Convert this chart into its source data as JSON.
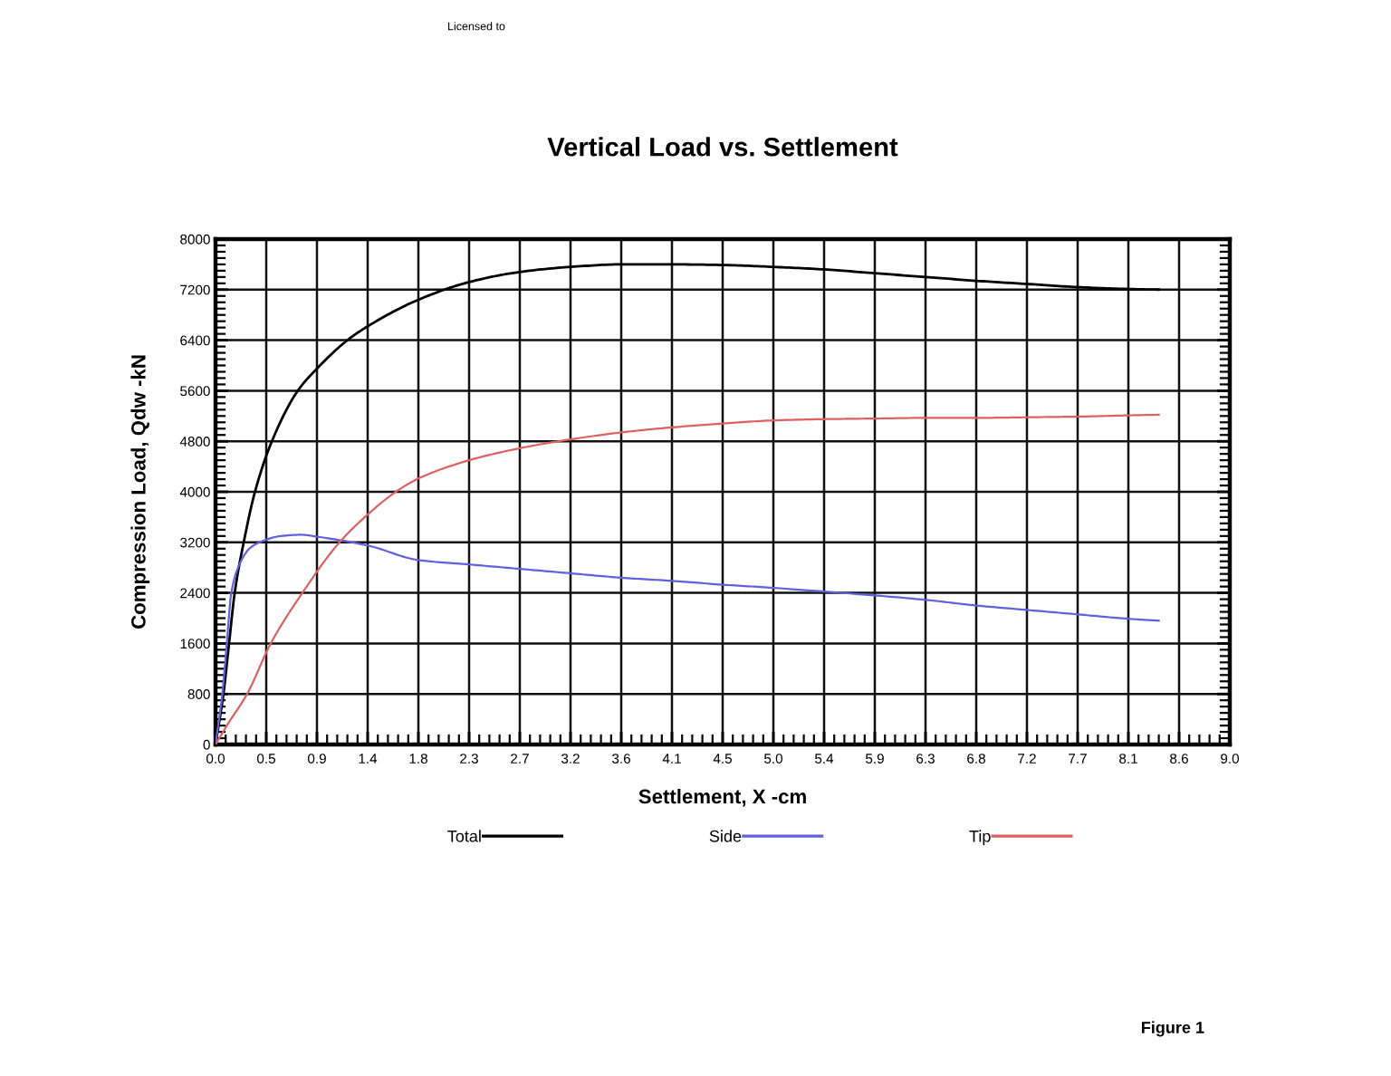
{
  "chart_data": {
    "type": "line",
    "title": "Vertical Load vs. Settlement",
    "xlabel": "Settlement, X -cm",
    "ylabel": "Compression Load, Qdw -kN",
    "annotations": [
      "Licensed to",
      "Figure 1"
    ],
    "series": [
      {
        "name": "Total",
        "color": "#000000",
        "x": [
          0,
          0.07,
          0.12,
          0.17,
          0.25,
          0.35,
          0.5,
          0.73,
          0.9,
          1.17,
          1.35,
          1.8,
          2.25,
          2.7,
          3.15,
          3.6,
          4.05,
          4.5,
          4.95,
          5.4,
          5.85,
          6.3,
          6.75,
          7.2,
          7.65,
          8.1,
          8.37
        ],
        "values": [
          0,
          800,
          1600,
          2400,
          3200,
          4000,
          4800,
          5600,
          5950,
          6400,
          6620,
          7040,
          7320,
          7480,
          7560,
          7600,
          7600,
          7590,
          7560,
          7520,
          7460,
          7400,
          7340,
          7290,
          7240,
          7210,
          7200
        ]
      },
      {
        "name": "Side",
        "color": "#6060e0",
        "x": [
          0,
          0.06,
          0.1,
          0.14,
          0.2,
          0.3,
          0.39,
          0.58,
          0.76,
          0.9,
          1.35,
          1.8,
          2.25,
          2.7,
          3.15,
          3.6,
          4.05,
          4.5,
          4.95,
          5.4,
          5.85,
          6.3,
          6.75,
          7.2,
          7.65,
          8.1,
          8.37
        ],
        "values": [
          0,
          800,
          1600,
          2400,
          2800,
          3100,
          3200,
          3300,
          3320,
          3290,
          3150,
          2920,
          2850,
          2780,
          2710,
          2640,
          2590,
          2530,
          2480,
          2420,
          2360,
          2290,
          2200,
          2130,
          2060,
          1990,
          1960
        ]
      },
      {
        "name": "Tip",
        "color": "#e06060",
        "x": [
          0,
          0.1,
          0.28,
          0.49,
          0.77,
          1.1,
          1.35,
          1.6,
          1.8,
          2.25,
          2.7,
          3.15,
          3.6,
          4.05,
          4.5,
          4.95,
          5.4,
          5.85,
          6.3,
          6.75,
          7.2,
          7.65,
          8.1,
          8.37
        ],
        "values": [
          0,
          300,
          800,
          1600,
          2400,
          3200,
          3640,
          4000,
          4210,
          4500,
          4690,
          4830,
          4940,
          5020,
          5080,
          5130,
          5150,
          5160,
          5170,
          5170,
          5180,
          5190,
          5210,
          5220
        ]
      }
    ],
    "xlim": [
      0,
      9
    ],
    "ylim": [
      0,
      8000
    ],
    "xticks": [
      {
        "value": 0,
        "label": "0.0"
      },
      {
        "value": 0.45,
        "label": "0.5"
      },
      0.9,
      {
        "value": 1.35,
        "label": "1.4"
      },
      1.8,
      {
        "value": 2.25,
        "label": "2.3"
      },
      2.7,
      {
        "value": 3.15,
        "label": "3.2"
      },
      3.6,
      {
        "value": 4.05,
        "label": "4.1"
      },
      4.5,
      {
        "value": 4.95,
        "label": "5.0"
      },
      5.4,
      {
        "value": 5.85,
        "label": "5.9"
      },
      6.3,
      {
        "value": 6.75,
        "label": "6.8"
      },
      7.2,
      {
        "value": 7.65,
        "label": "7.7"
      },
      8.1,
      {
        "value": 8.55,
        "label": "8.6"
      },
      {
        "value": 9,
        "label": "9.0"
      }
    ],
    "yticks": [
      0,
      800,
      1600,
      2400,
      3200,
      4000,
      4800,
      5600,
      6400,
      7200,
      8000
    ],
    "grid": true,
    "legend": "bottom",
    "line_style": "solid"
  }
}
